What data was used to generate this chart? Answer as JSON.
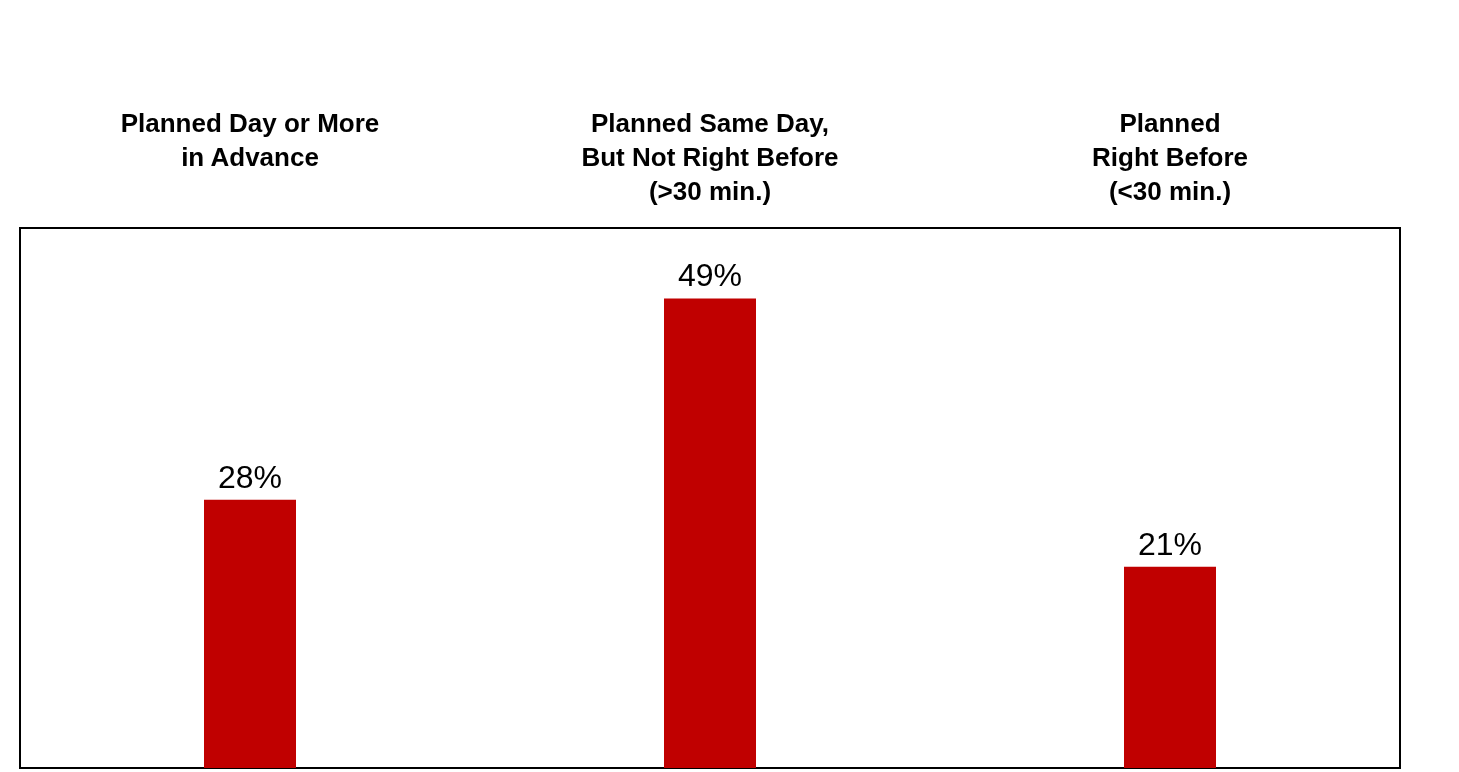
{
  "chart_data": {
    "type": "bar",
    "categories": [
      "Planned Day or More\nin Advance",
      "Planned Same Day,\nBut Not Right Before\n(>30 min.)",
      "Planned\nRight Before\n(<30 min.)"
    ],
    "values": [
      28,
      49,
      21
    ],
    "value_labels": [
      "28%",
      "49%",
      "21%"
    ],
    "color": "#c00000"
  }
}
